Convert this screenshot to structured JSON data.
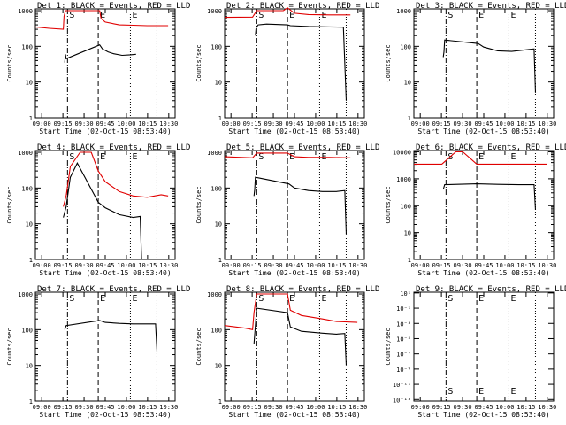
{
  "xaxis_title": "Start Time (02-Oct-15 08:53:40)",
  "ylabel": "Counts/sec",
  "colors": {
    "events": "#000000",
    "lld": "#e00000"
  },
  "panels": [
    {
      "title": "Det 1: BLACK = Events, RED = LLD",
      "xticks": [
        "09:00",
        "09:15",
        "09:30",
        "09:45",
        "10:00",
        "10:15",
        "10:30"
      ],
      "yticks": [
        "1",
        "10",
        "100",
        "1000"
      ],
      "ymin_exp": 0,
      "ymax_exp": 3.05,
      "markers": [
        {
          "kind": "dashdot",
          "x": 0.23,
          "label": "S"
        },
        {
          "kind": "dash",
          "x": 0.45,
          "label": "E"
        },
        {
          "kind": "dot",
          "x": 0.68,
          "label": "E"
        },
        {
          "kind": "dot",
          "x": 0.87,
          "label": ""
        }
      ]
    },
    {
      "title": "Det 2: BLACK = Events, RED = LLD",
      "xticks": [
        "09:00",
        "09:15",
        "09:30",
        "09:45",
        "10:00",
        "10:15",
        "10:30"
      ],
      "yticks": [
        "1",
        "10",
        "100",
        "1000"
      ],
      "ymin_exp": 0,
      "ymax_exp": 3.05,
      "markers": [
        {
          "kind": "dashdot",
          "x": 0.23,
          "label": "S"
        },
        {
          "kind": "dash",
          "x": 0.45,
          "label": "E"
        },
        {
          "kind": "dot",
          "x": 0.68,
          "label": "E"
        },
        {
          "kind": "dot",
          "x": 0.87,
          "label": ""
        }
      ]
    },
    {
      "title": "Det 3: BLACK = Events, RED = LLD",
      "xticks": [
        "09:00",
        "09:15",
        "09:30",
        "09:45",
        "10:00",
        "10:15",
        "10:30"
      ],
      "yticks": [
        "1",
        "10",
        "100",
        "1000"
      ],
      "ymin_exp": 0,
      "ymax_exp": 3.05,
      "markers": [
        {
          "kind": "dashdot",
          "x": 0.23,
          "label": "S"
        },
        {
          "kind": "dash",
          "x": 0.45,
          "label": "E"
        },
        {
          "kind": "dot",
          "x": 0.68,
          "label": "E"
        },
        {
          "kind": "dot",
          "x": 0.87,
          "label": ""
        }
      ]
    },
    {
      "title": "Det 4: BLACK = Events, RED = LLD",
      "xticks": [
        "09:00",
        "09:15",
        "09:30",
        "09:45",
        "10:00",
        "10:15",
        "10:30"
      ],
      "yticks": [
        "1",
        "10",
        "100",
        "1000"
      ],
      "ymin_exp": 0,
      "ymax_exp": 3.05,
      "markers": [
        {
          "kind": "dashdot",
          "x": 0.23,
          "label": "S"
        },
        {
          "kind": "dash",
          "x": 0.45,
          "label": "E"
        },
        {
          "kind": "dot",
          "x": 0.68,
          "label": "E"
        },
        {
          "kind": "dot",
          "x": 0.87,
          "label": ""
        }
      ]
    },
    {
      "title": "Det 5: BLACK = Events, RED = LLD",
      "xticks": [
        "09:00",
        "09:15",
        "09:30",
        "09:45",
        "10:00",
        "10:15",
        "10:30"
      ],
      "yticks": [
        "1",
        "10",
        "100",
        "1000"
      ],
      "ymin_exp": 0,
      "ymax_exp": 3.05,
      "markers": [
        {
          "kind": "dashdot",
          "x": 0.23,
          "label": "S"
        },
        {
          "kind": "dash",
          "x": 0.45,
          "label": "E"
        },
        {
          "kind": "dot",
          "x": 0.68,
          "label": "E"
        },
        {
          "kind": "dot",
          "x": 0.87,
          "label": ""
        }
      ]
    },
    {
      "title": "Det 6: BLACK = Events, RED = LLD",
      "xticks": [
        "09:00",
        "09:15",
        "09:30",
        "09:45",
        "10:00",
        "10:15",
        "10:30"
      ],
      "yticks": [
        "1",
        "10",
        "100",
        "1000",
        "10000"
      ],
      "ymin_exp": 0,
      "ymax_exp": 4.05,
      "markers": [
        {
          "kind": "dashdot",
          "x": 0.23,
          "label": "S"
        },
        {
          "kind": "dash",
          "x": 0.45,
          "label": "E"
        },
        {
          "kind": "dot",
          "x": 0.68,
          "label": "E"
        },
        {
          "kind": "dot",
          "x": 0.87,
          "label": ""
        }
      ]
    },
    {
      "title": "Det 7: BLACK = Events, RED = LLD",
      "xticks": [
        "09:00",
        "09:15",
        "09:30",
        "09:45",
        "10:00",
        "10:15",
        "10:30"
      ],
      "yticks": [
        "1",
        "10",
        "100",
        "1000"
      ],
      "ymin_exp": 0,
      "ymax_exp": 3.05,
      "markers": [
        {
          "kind": "dashdot",
          "x": 0.23,
          "label": "S"
        },
        {
          "kind": "dash",
          "x": 0.45,
          "label": "E"
        },
        {
          "kind": "dot",
          "x": 0.68,
          "label": "E"
        },
        {
          "kind": "dot",
          "x": 0.87,
          "label": ""
        }
      ]
    },
    {
      "title": "Det 8: BLACK = Events, RED = LLD",
      "xticks": [
        "09:00",
        "09:15",
        "09:30",
        "09:45",
        "10:00",
        "10:15",
        "10:30"
      ],
      "yticks": [
        "1",
        "10",
        "100",
        "1000"
      ],
      "ymin_exp": 0,
      "ymax_exp": 3.05,
      "markers": [
        {
          "kind": "dashdot",
          "x": 0.23,
          "label": "S"
        },
        {
          "kind": "dash",
          "x": 0.45,
          "label": "E"
        },
        {
          "kind": "dot",
          "x": 0.68,
          "label": "E"
        },
        {
          "kind": "dot",
          "x": 0.87,
          "label": ""
        }
      ]
    },
    {
      "title": "Det 9: BLACK = Events, RED = LLD",
      "xticks": [
        "09:00",
        "09:15",
        "09:30",
        "09:45",
        "10:00",
        "10:15",
        "10:30"
      ],
      "yticks": [
        "10¹",
        "10⁻¹",
        "10⁻³",
        "10⁻⁵",
        "10⁻⁷",
        "10⁻⁹",
        "10⁻¹¹",
        "10⁻¹³"
      ],
      "ymin_exp": -13.2,
      "ymax_exp": 1.1,
      "markers": [
        {
          "kind": "dashdot",
          "x": 0.23,
          "label": "S"
        },
        {
          "kind": "dash",
          "x": 0.45,
          "label": "E"
        },
        {
          "kind": "dot",
          "x": 0.68,
          "label": "E"
        },
        {
          "kind": "dot",
          "x": 0.87,
          "label": ""
        }
      ]
    }
  ],
  "chart_data": [
    {
      "type": "line",
      "title": "Det 1: BLACK = Events, RED = LLD",
      "xlabel": "Start Time (02-Oct-15 08:53:40)",
      "ylabel": "Counts/sec",
      "yscale": "log",
      "ylim": [
        1,
        1100
      ],
      "series": [
        {
          "name": "Events",
          "color": "#000000",
          "points": [
            [
              0.21,
              35
            ],
            [
              0.215,
              60
            ],
            [
              0.22,
              45
            ],
            [
              0.46,
              110
            ],
            [
              0.48,
              85
            ],
            [
              0.52,
              70
            ],
            [
              0.56,
              62
            ],
            [
              0.62,
              56
            ],
            [
              0.68,
              58
            ],
            [
              0.72,
              60
            ]
          ]
        },
        {
          "name": "LLD",
          "color": "#e00000",
          "points": [
            [
              0.0,
              350
            ],
            [
              0.1,
              320
            ],
            [
              0.2,
              300
            ],
            [
              0.205,
              700
            ],
            [
              0.215,
              1000
            ],
            [
              0.46,
              1000
            ],
            [
              0.47,
              600
            ],
            [
              0.5,
              480
            ],
            [
              0.6,
              400
            ],
            [
              0.7,
              390
            ],
            [
              0.8,
              380
            ],
            [
              0.95,
              380
            ]
          ]
        }
      ]
    },
    {
      "type": "line",
      "title": "Det 2: BLACK = Events, RED = LLD",
      "xlabel": "Start Time (02-Oct-15 08:53:40)",
      "ylabel": "Counts/sec",
      "yscale": "log",
      "ylim": [
        1,
        1100
      ],
      "series": [
        {
          "name": "Events",
          "color": "#000000",
          "points": [
            [
              0.22,
              200
            ],
            [
              0.225,
              330
            ],
            [
              0.24,
              400
            ],
            [
              0.3,
              420
            ],
            [
              0.45,
              400
            ],
            [
              0.47,
              380
            ],
            [
              0.6,
              360
            ],
            [
              0.75,
              350
            ],
            [
              0.85,
              345
            ],
            [
              0.87,
              3
            ]
          ]
        },
        {
          "name": "LLD",
          "color": "#e00000",
          "points": [
            [
              0.0,
              650
            ],
            [
              0.2,
              660
            ],
            [
              0.23,
              1000
            ],
            [
              0.42,
              1000
            ],
            [
              0.45,
              1200
            ],
            [
              0.5,
              850
            ],
            [
              0.6,
              780
            ],
            [
              0.75,
              760
            ],
            [
              0.9,
              760
            ]
          ]
        }
      ]
    },
    {
      "type": "line",
      "title": "Det 3: BLACK = Events, RED = LLD",
      "xlabel": "Start Time (02-Oct-15 08:53:40)",
      "ylabel": "Counts/sec",
      "yscale": "log",
      "ylim": [
        1,
        1100
      ],
      "series": [
        {
          "name": "Events",
          "color": "#000000",
          "points": [
            [
              0.21,
              50
            ],
            [
              0.215,
              70
            ],
            [
              0.22,
              150
            ],
            [
              0.46,
              120
            ],
            [
              0.5,
              95
            ],
            [
              0.6,
              75
            ],
            [
              0.7,
              72
            ],
            [
              0.8,
              80
            ],
            [
              0.86,
              85
            ],
            [
              0.87,
              5
            ]
          ]
        }
      ]
    },
    {
      "type": "line",
      "title": "Det 4: BLACK = Events, RED = LLD",
      "xlabel": "Start Time (02-Oct-15 08:53:40)",
      "ylabel": "Counts/sec",
      "yscale": "log",
      "ylim": [
        1,
        1100
      ],
      "series": [
        {
          "name": "Events",
          "color": "#000000",
          "points": [
            [
              0.2,
              15
            ],
            [
              0.22,
              30
            ],
            [
              0.25,
              200
            ],
            [
              0.3,
              500
            ],
            [
              0.45,
              40
            ],
            [
              0.5,
              28
            ],
            [
              0.6,
              18
            ],
            [
              0.7,
              15
            ],
            [
              0.75,
              16
            ],
            [
              0.76,
              1
            ]
          ]
        },
        {
          "name": "LLD",
          "color": "#e00000",
          "points": [
            [
              0.2,
              30
            ],
            [
              0.22,
              60
            ],
            [
              0.25,
              400
            ],
            [
              0.32,
              1000
            ],
            [
              0.4,
              1000
            ],
            [
              0.45,
              300
            ],
            [
              0.5,
              150
            ],
            [
              0.6,
              80
            ],
            [
              0.7,
              60
            ],
            [
              0.8,
              55
            ],
            [
              0.9,
              65
            ],
            [
              0.95,
              60
            ]
          ]
        }
      ]
    },
    {
      "type": "line",
      "title": "Det 5: BLACK = Events, RED = LLD",
      "xlabel": "Start Time (02-Oct-15 08:53:40)",
      "ylabel": "Counts/sec",
      "yscale": "log",
      "ylim": [
        1,
        1100
      ],
      "series": [
        {
          "name": "Events",
          "color": "#000000",
          "points": [
            [
              0.21,
              60
            ],
            [
              0.215,
              90
            ],
            [
              0.22,
              200
            ],
            [
              0.46,
              130
            ],
            [
              0.5,
              100
            ],
            [
              0.6,
              85
            ],
            [
              0.7,
              80
            ],
            [
              0.8,
              80
            ],
            [
              0.86,
              85
            ],
            [
              0.87,
              5
            ]
          ]
        },
        {
          "name": "LLD",
          "color": "#e00000",
          "points": [
            [
              0.0,
              750
            ],
            [
              0.2,
              700
            ],
            [
              0.23,
              950
            ],
            [
              0.45,
              950
            ],
            [
              0.5,
              750
            ],
            [
              0.6,
              720
            ],
            [
              0.75,
              720
            ],
            [
              0.9,
              700
            ]
          ]
        }
      ]
    },
    {
      "type": "line",
      "title": "Det 6: BLACK = Events, RED = LLD",
      "xlabel": "Start Time (02-Oct-15 08:53:40)",
      "ylabel": "Counts/sec",
      "yscale": "log",
      "ylim": [
        1,
        11000
      ],
      "series": [
        {
          "name": "Events",
          "color": "#000000",
          "points": [
            [
              0.21,
              400
            ],
            [
              0.22,
              600
            ],
            [
              0.45,
              650
            ],
            [
              0.6,
              620
            ],
            [
              0.75,
              600
            ],
            [
              0.86,
              600
            ],
            [
              0.87,
              70
            ]
          ]
        },
        {
          "name": "LLD",
          "color": "#e00000",
          "points": [
            [
              0.0,
              3500
            ],
            [
              0.2,
              3500
            ],
            [
              0.3,
              10000
            ],
            [
              0.35,
              10000
            ],
            [
              0.45,
              3500
            ],
            [
              0.6,
              3500
            ],
            [
              0.8,
              3500
            ],
            [
              0.95,
              3500
            ]
          ]
        }
      ]
    },
    {
      "type": "line",
      "title": "Det 7: BLACK = Events, RED = LLD",
      "xlabel": "Start Time (02-Oct-15 08:53:40)",
      "ylabel": "Counts/sec",
      "yscale": "log",
      "ylim": [
        1,
        1100
      ],
      "series": [
        {
          "name": "Events",
          "color": "#000000",
          "points": [
            [
              0.21,
              100
            ],
            [
              0.22,
              130
            ],
            [
              0.46,
              180
            ],
            [
              0.5,
              160
            ],
            [
              0.6,
              150
            ],
            [
              0.7,
              145
            ],
            [
              0.8,
              145
            ],
            [
              0.86,
              145
            ],
            [
              0.87,
              25
            ]
          ]
        }
      ]
    },
    {
      "type": "line",
      "title": "Det 8: BLACK = Events, RED = LLD",
      "xlabel": "Start Time (02-Oct-15 08:53:40)",
      "ylabel": "Counts/sec",
      "yscale": "log",
      "ylim": [
        1,
        1100
      ],
      "series": [
        {
          "name": "Events",
          "color": "#000000",
          "points": [
            [
              0.21,
              40
            ],
            [
              0.22,
              130
            ],
            [
              0.23,
              400
            ],
            [
              0.45,
              300
            ],
            [
              0.47,
              120
            ],
            [
              0.55,
              90
            ],
            [
              0.7,
              80
            ],
            [
              0.8,
              75
            ],
            [
              0.86,
              78
            ],
            [
              0.87,
              10
            ]
          ]
        },
        {
          "name": "LLD",
          "color": "#e00000",
          "points": [
            [
              0.0,
              130
            ],
            [
              0.15,
              110
            ],
            [
              0.2,
              100
            ],
            [
              0.21,
              300
            ],
            [
              0.23,
              1000
            ],
            [
              0.45,
              1000
            ],
            [
              0.47,
              350
            ],
            [
              0.55,
              250
            ],
            [
              0.7,
              200
            ],
            [
              0.8,
              170
            ],
            [
              0.95,
              160
            ]
          ]
        }
      ]
    },
    {
      "type": "line",
      "title": "Det 9: BLACK = Events, RED = LLD",
      "xlabel": "Start Time (02-Oct-15 08:53:40)",
      "ylabel": "Counts/sec",
      "yscale": "log",
      "ylim": [
        1e-13,
        10
      ],
      "series": []
    }
  ]
}
